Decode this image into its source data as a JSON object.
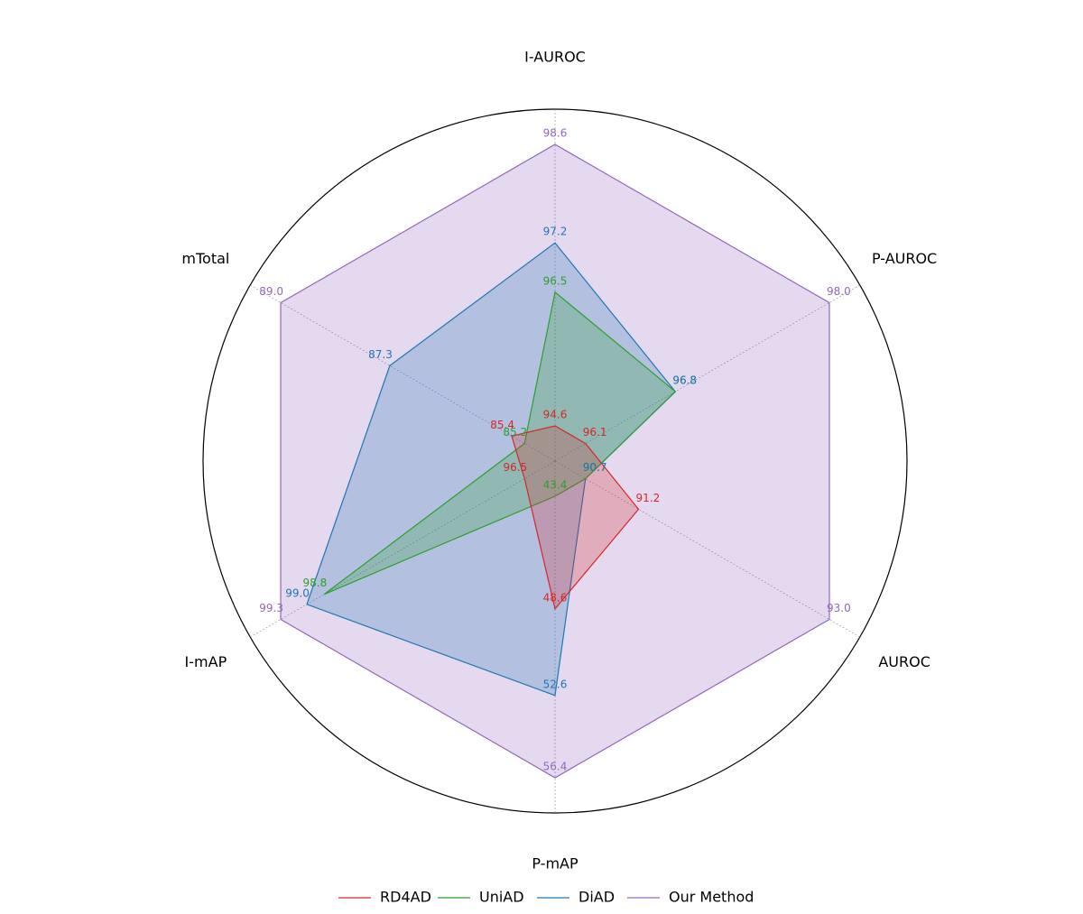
{
  "chart_data": {
    "type": "radar",
    "categories": [
      "I-AUROC",
      "P-AUROC",
      "AUROC",
      "P-mAP",
      "I-mAP",
      "mTotal"
    ],
    "series": [
      {
        "name": "RD4AD",
        "color": "#d62728",
        "values": [
          94.6,
          96.1,
          91.2,
          48.6,
          96.5,
          85.4
        ],
        "value_labels": [
          "94.6",
          "96.1",
          "91.2",
          "48.6",
          "96.5",
          "85.4"
        ]
      },
      {
        "name": "UniAD",
        "color": "#2ca02c",
        "values": [
          96.5,
          96.8,
          90.7,
          43.4,
          98.8,
          85.2
        ],
        "value_labels": [
          "96.5",
          "96.8",
          "90.7",
          "43.4",
          "98.8",
          "85.2"
        ]
      },
      {
        "name": "DiAD",
        "color": "#1f77b4",
        "values": [
          97.2,
          96.8,
          90.7,
          52.6,
          99.0,
          87.3
        ],
        "value_labels": [
          "97.2",
          "96.8",
          "90.7",
          "52.6",
          "99.0",
          "87.3"
        ]
      },
      {
        "name": "Our Method",
        "color": "#9467bd",
        "values": [
          98.6,
          98.0,
          93.0,
          56.4,
          99.3,
          89.0
        ],
        "value_labels": [
          "98.6",
          "98.0",
          "93.0",
          "56.4",
          "99.3",
          "89.0"
        ]
      }
    ],
    "legend": "bottom"
  }
}
